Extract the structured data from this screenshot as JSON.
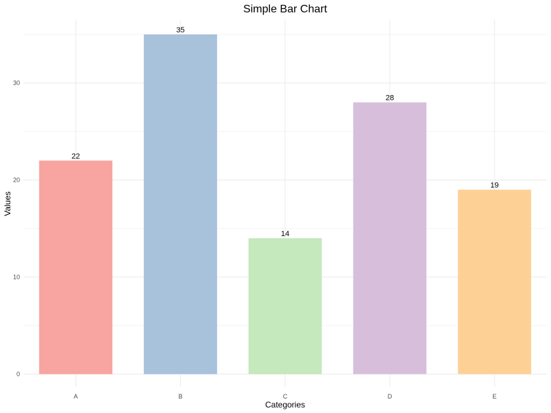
{
  "chart_data": {
    "type": "bar",
    "title": "Simple Bar Chart",
    "xlabel": "Categories",
    "ylabel": "Values",
    "categories": [
      "A",
      "B",
      "C",
      "D",
      "E"
    ],
    "values": [
      22,
      35,
      14,
      28,
      19
    ],
    "colors": [
      "#F8A4A0",
      "#A8C2DC",
      "#C5E8BC",
      "#D7BFDC",
      "#FDD196"
    ],
    "ylim": [
      0,
      36.7
    ],
    "y_ticks": [
      0,
      10,
      20,
      30
    ],
    "y_minor_ticks": [
      5,
      15,
      25,
      35
    ],
    "grid": true,
    "legend": "none",
    "data_labels": true
  }
}
